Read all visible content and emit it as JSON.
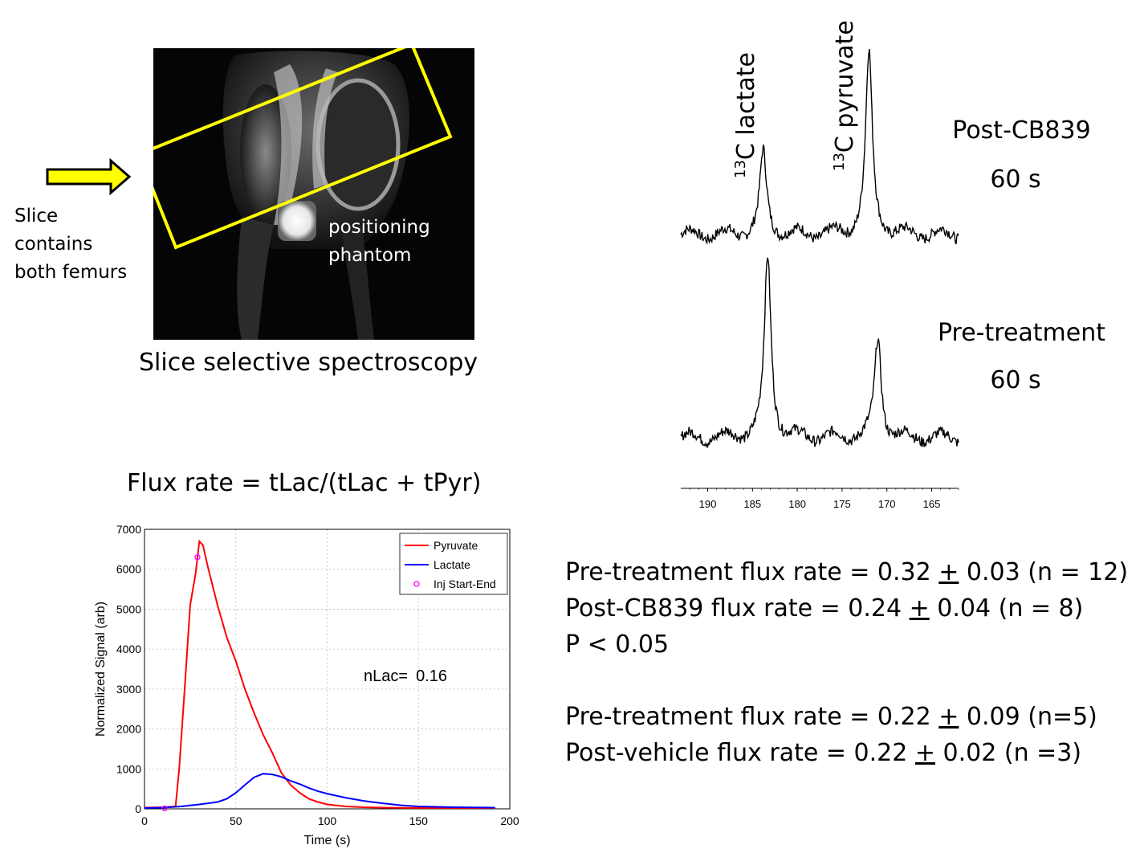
{
  "left_note": {
    "line1": "Slice",
    "line2": "contains",
    "line3": "both femurs"
  },
  "mri": {
    "phantom_line1": "positioning",
    "phantom_line2": "phantom",
    "caption": "Slice selective spectroscopy",
    "box_color": "#ffff00"
  },
  "spectra": {
    "peak_lactate_sup": "13",
    "peak_lactate_label": "C lactate",
    "peak_pyruvate_sup": "13",
    "peak_pyruvate_label": "C pyruvate",
    "post_label": "Post-CB839",
    "post_time": "60 s",
    "pre_label": "Pre-treatment",
    "pre_time": "60 s"
  },
  "flux_formula": "Flux rate = tLac/(tLac + tPyr)",
  "stats": {
    "pre1": "Pre-treatment flux rate = 0.32 ",
    "pre1_pm": "+",
    "pre1_rest": " 0.03 (n = 12)",
    "post1": "Post-CB839 flux rate = 0.24 ",
    "post1_pm": "+",
    "post1_rest": " 0.04 (n = 8)",
    "p": "P < 0.05",
    "pre2": "Pre-treatment flux rate = 0.22 ",
    "pre2_pm": "+",
    "pre2_rest": " 0.09  (n=5)",
    "post2": "Post-vehicle flux rate = 0.22 ",
    "post2_pm": "+",
    "post2_rest": " 0.02 (n =3)"
  },
  "chart_data": [
    {
      "type": "line",
      "name_ref": "spectra",
      "xlabel": "",
      "x_reversed": true,
      "xlim": [
        193,
        162
      ],
      "xticks": [
        "190",
        "185",
        "180",
        "175",
        "170",
        "165"
      ],
      "xtick_values": [
        190,
        185,
        180,
        175,
        170,
        165
      ],
      "series": [
        {
          "name": "Post-CB839",
          "peaks": [
            {
              "x": 183.8,
              "height": 0.45
            },
            {
              "x": 172.0,
              "height": 1.0
            }
          ]
        },
        {
          "name": "Pre-treatment",
          "peaks": [
            {
              "x": 183.3,
              "height": 1.0
            },
            {
              "x": 171.0,
              "height": 0.55
            }
          ]
        }
      ]
    },
    {
      "type": "line",
      "xlabel": "Time (s)",
      "ylabel": "Normalized Signal (arb)",
      "xlim": [
        0,
        200
      ],
      "ylim": [
        0,
        7000
      ],
      "xticks": [
        "0",
        "50",
        "100",
        "150",
        "200"
      ],
      "xtick_values": [
        0,
        50,
        100,
        150,
        200
      ],
      "yticks": [
        "0",
        "1000",
        "2000",
        "3000",
        "4000",
        "5000",
        "6000",
        "7000"
      ],
      "ytick_values": [
        0,
        1000,
        2000,
        3000,
        4000,
        5000,
        6000,
        7000
      ],
      "legend_position": "top-right",
      "annotation_label": "nLac=",
      "annotation_value": "0.16",
      "series": [
        {
          "name": "Pyruvate",
          "color": "#ff0000",
          "x": [
            0,
            10,
            17,
            19,
            22,
            25,
            28,
            30,
            32,
            35,
            40,
            45,
            50,
            55,
            60,
            65,
            70,
            75,
            80,
            85,
            90,
            95,
            100,
            110,
            120,
            130,
            150,
            170,
            192
          ],
          "y": [
            30,
            40,
            60,
            1000,
            3000,
            5100,
            5900,
            6700,
            6600,
            6000,
            5100,
            4300,
            3700,
            3000,
            2400,
            1850,
            1400,
            900,
            600,
            400,
            250,
            170,
            110,
            60,
            40,
            30,
            20,
            20,
            20
          ]
        },
        {
          "name": "Lactate",
          "color": "#0000ff",
          "x": [
            0,
            10,
            20,
            30,
            40,
            45,
            50,
            55,
            60,
            65,
            70,
            75,
            80,
            85,
            90,
            95,
            100,
            110,
            120,
            130,
            140,
            150,
            170,
            192
          ],
          "y": [
            20,
            30,
            60,
            110,
            170,
            250,
            400,
            600,
            790,
            880,
            860,
            800,
            700,
            620,
            520,
            440,
            380,
            280,
            200,
            140,
            90,
            60,
            40,
            30
          ]
        },
        {
          "name": "Inj Start-End",
          "color": "#ff00ff",
          "marker": "o",
          "x": [
            11,
            29
          ],
          "y": [
            10,
            6300
          ]
        }
      ]
    }
  ]
}
